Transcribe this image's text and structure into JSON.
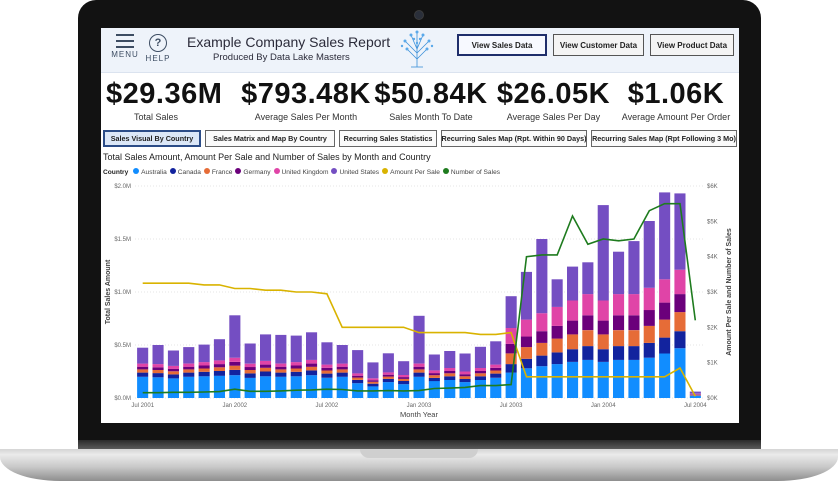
{
  "header": {
    "menu_label": "MENU",
    "help_label": "HELP",
    "title": "Example Company Sales Report",
    "subtitle": "Produced By Data Lake Masters",
    "nav_buttons": [
      "View Sales Data",
      "View Customer Data",
      "View Product Data"
    ]
  },
  "kpis": [
    {
      "value": "$29.36M",
      "label": "Total Sales"
    },
    {
      "value": "$793.48K",
      "label": "Average Sales Per Month"
    },
    {
      "value": "$50.84K",
      "label": "Sales Month To Date"
    },
    {
      "value": "$26.05K",
      "label": "Average Sales Per Day"
    },
    {
      "value": "$1.06K",
      "label": "Average Amount Per Order"
    }
  ],
  "tabs": [
    "Sales Visual By Country",
    "Sales Matrix and Map By Country",
    "Recurring Sales Statistics",
    "Recurring Sales Map (Rpt. Within 90 Days)",
    "Recurring Sales Map (Rpt Following 3 Mo)"
  ],
  "colors": {
    "Australia": "#118dff",
    "Canada": "#12239e",
    "France": "#e66c37",
    "Germany": "#6b007b",
    "United Kingdom": "#e044a7",
    "United States": "#744ec2",
    "Amount Per Sale": "#d9b300",
    "Number of Sales": "#1e7b1e"
  },
  "chart_data": {
    "type": "bar",
    "title": "Total Sales Amount, Amount Per Sale and Number of Sales by Month and Country",
    "legend_title": "Country",
    "legend": [
      "Australia",
      "Canada",
      "France",
      "Germany",
      "United Kingdom",
      "United States",
      "Amount Per Sale",
      "Number of Sales"
    ],
    "xlabel": "Month Year",
    "ylabel": "Total Sales Amount",
    "y2label": "Amount Per Sale and Number of Sales",
    "x_ticks": [
      "Jul 2001",
      "Jan 2002",
      "Jul 2002",
      "Jan 2003",
      "Jul 2003",
      "Jan 2004",
      "Jul 2004"
    ],
    "y_ticks": [
      "$0.0M",
      "$0.5M",
      "$1.0M",
      "$1.5M",
      "$2.0M"
    ],
    "y2_ticks": [
      "$0K",
      "$1K",
      "$2K",
      "$3K",
      "$4K",
      "$5K",
      "$6K"
    ],
    "ylim": [
      0,
      2000000
    ],
    "y2lim": [
      0,
      6000
    ],
    "categories": [
      "Jul 2001",
      "Aug 2001",
      "Sep 2001",
      "Oct 2001",
      "Nov 2001",
      "Dec 2001",
      "Jan 2002",
      "Feb 2002",
      "Mar 2002",
      "Apr 2002",
      "May 2002",
      "Jun 2002",
      "Jul 2002",
      "Aug 2002",
      "Sep 2002",
      "Oct 2002",
      "Nov 2002",
      "Dec 2002",
      "Jan 2003",
      "Feb 2003",
      "Mar 2003",
      "Apr 2003",
      "May 2003",
      "Jun 2003",
      "Jul 2003",
      "Aug 2003",
      "Sep 2003",
      "Oct 2003",
      "Nov 2003",
      "Dec 2003",
      "Jan 2004",
      "Feb 2004",
      "Mar 2004",
      "Apr 2004",
      "May 2004",
      "Jun 2004",
      "Jul 2004"
    ],
    "series": [
      {
        "name": "Australia",
        "values": [
          200000,
          195000,
          185000,
          200000,
          205000,
          210000,
          215000,
          190000,
          205000,
          200000,
          205000,
          215000,
          190000,
          200000,
          140000,
          110000,
          150000,
          130000,
          200000,
          160000,
          170000,
          150000,
          170000,
          190000,
          240000,
          280000,
          300000,
          320000,
          340000,
          360000,
          340000,
          360000,
          360000,
          380000,
          420000,
          470000,
          20000
        ]
      },
      {
        "name": "Canada",
        "values": [
          40000,
          40000,
          38000,
          40000,
          42000,
          45000,
          50000,
          42000,
          45000,
          40000,
          42000,
          45000,
          40000,
          40000,
          30000,
          25000,
          30000,
          30000,
          40000,
          30000,
          35000,
          30000,
          35000,
          40000,
          80000,
          90000,
          100000,
          110000,
          120000,
          130000,
          120000,
          130000,
          130000,
          140000,
          150000,
          160000,
          5000
        ]
      },
      {
        "name": "France",
        "values": [
          30000,
          30000,
          28000,
          30000,
          32000,
          35000,
          40000,
          32000,
          35000,
          30000,
          32000,
          35000,
          30000,
          30000,
          22000,
          18000,
          22000,
          20000,
          30000,
          25000,
          28000,
          25000,
          28000,
          30000,
          100000,
          110000,
          120000,
          130000,
          140000,
          150000,
          140000,
          150000,
          150000,
          160000,
          170000,
          180000,
          5000
        ]
      },
      {
        "name": "Germany",
        "values": [
          25000,
          25000,
          24000,
          25000,
          28000,
          30000,
          35000,
          28000,
          30000,
          25000,
          28000,
          30000,
          25000,
          25000,
          18000,
          15000,
          18000,
          17000,
          25000,
          20000,
          22000,
          20000,
          22000,
          25000,
          90000,
          100000,
          110000,
          120000,
          130000,
          140000,
          130000,
          140000,
          140000,
          150000,
          160000,
          170000,
          5000
        ]
      },
      {
        "name": "United Kingdom",
        "values": [
          30000,
          30000,
          28000,
          30000,
          32000,
          35000,
          40000,
          32000,
          35000,
          30000,
          32000,
          35000,
          30000,
          30000,
          22000,
          18000,
          22000,
          20000,
          30000,
          25000,
          28000,
          25000,
          28000,
          30000,
          150000,
          160000,
          170000,
          180000,
          190000,
          200000,
          190000,
          200000,
          200000,
          210000,
          220000,
          230000,
          5000
        ]
      },
      {
        "name": "United States",
        "values": [
          150000,
          180000,
          145000,
          155000,
          165000,
          200000,
          400000,
          190000,
          250000,
          270000,
          250000,
          260000,
          210000,
          175000,
          220000,
          150000,
          180000,
          130000,
          450000,
          150000,
          160000,
          170000,
          200000,
          220000,
          300000,
          450000,
          700000,
          260000,
          320000,
          300000,
          900000,
          400000,
          500000,
          630000,
          820000,
          720000,
          20000
        ]
      },
      {
        "name": "Amount Per Sale",
        "axis": "y2",
        "values": [
          3250,
          3250,
          3250,
          3250,
          3200,
          3200,
          3100,
          3100,
          3050,
          3050,
          3000,
          3000,
          2950,
          2000,
          2000,
          2000,
          2000,
          2000,
          1850,
          1850,
          1850,
          1850,
          1800,
          1800,
          1850,
          600,
          600,
          600,
          600,
          600,
          600,
          600,
          600,
          600,
          600,
          850,
          50
        ]
      },
      {
        "name": "Number of Sales",
        "axis": "y2",
        "values": [
          150,
          150,
          160,
          160,
          170,
          180,
          250,
          190,
          190,
          200,
          220,
          230,
          250,
          240,
          200,
          200,
          210,
          200,
          210,
          270,
          280,
          300,
          350,
          350,
          380,
          4000,
          4050,
          4050,
          5150,
          4350,
          4500,
          4450,
          4500,
          5300,
          5500,
          5500,
          2200
        ]
      }
    ]
  }
}
